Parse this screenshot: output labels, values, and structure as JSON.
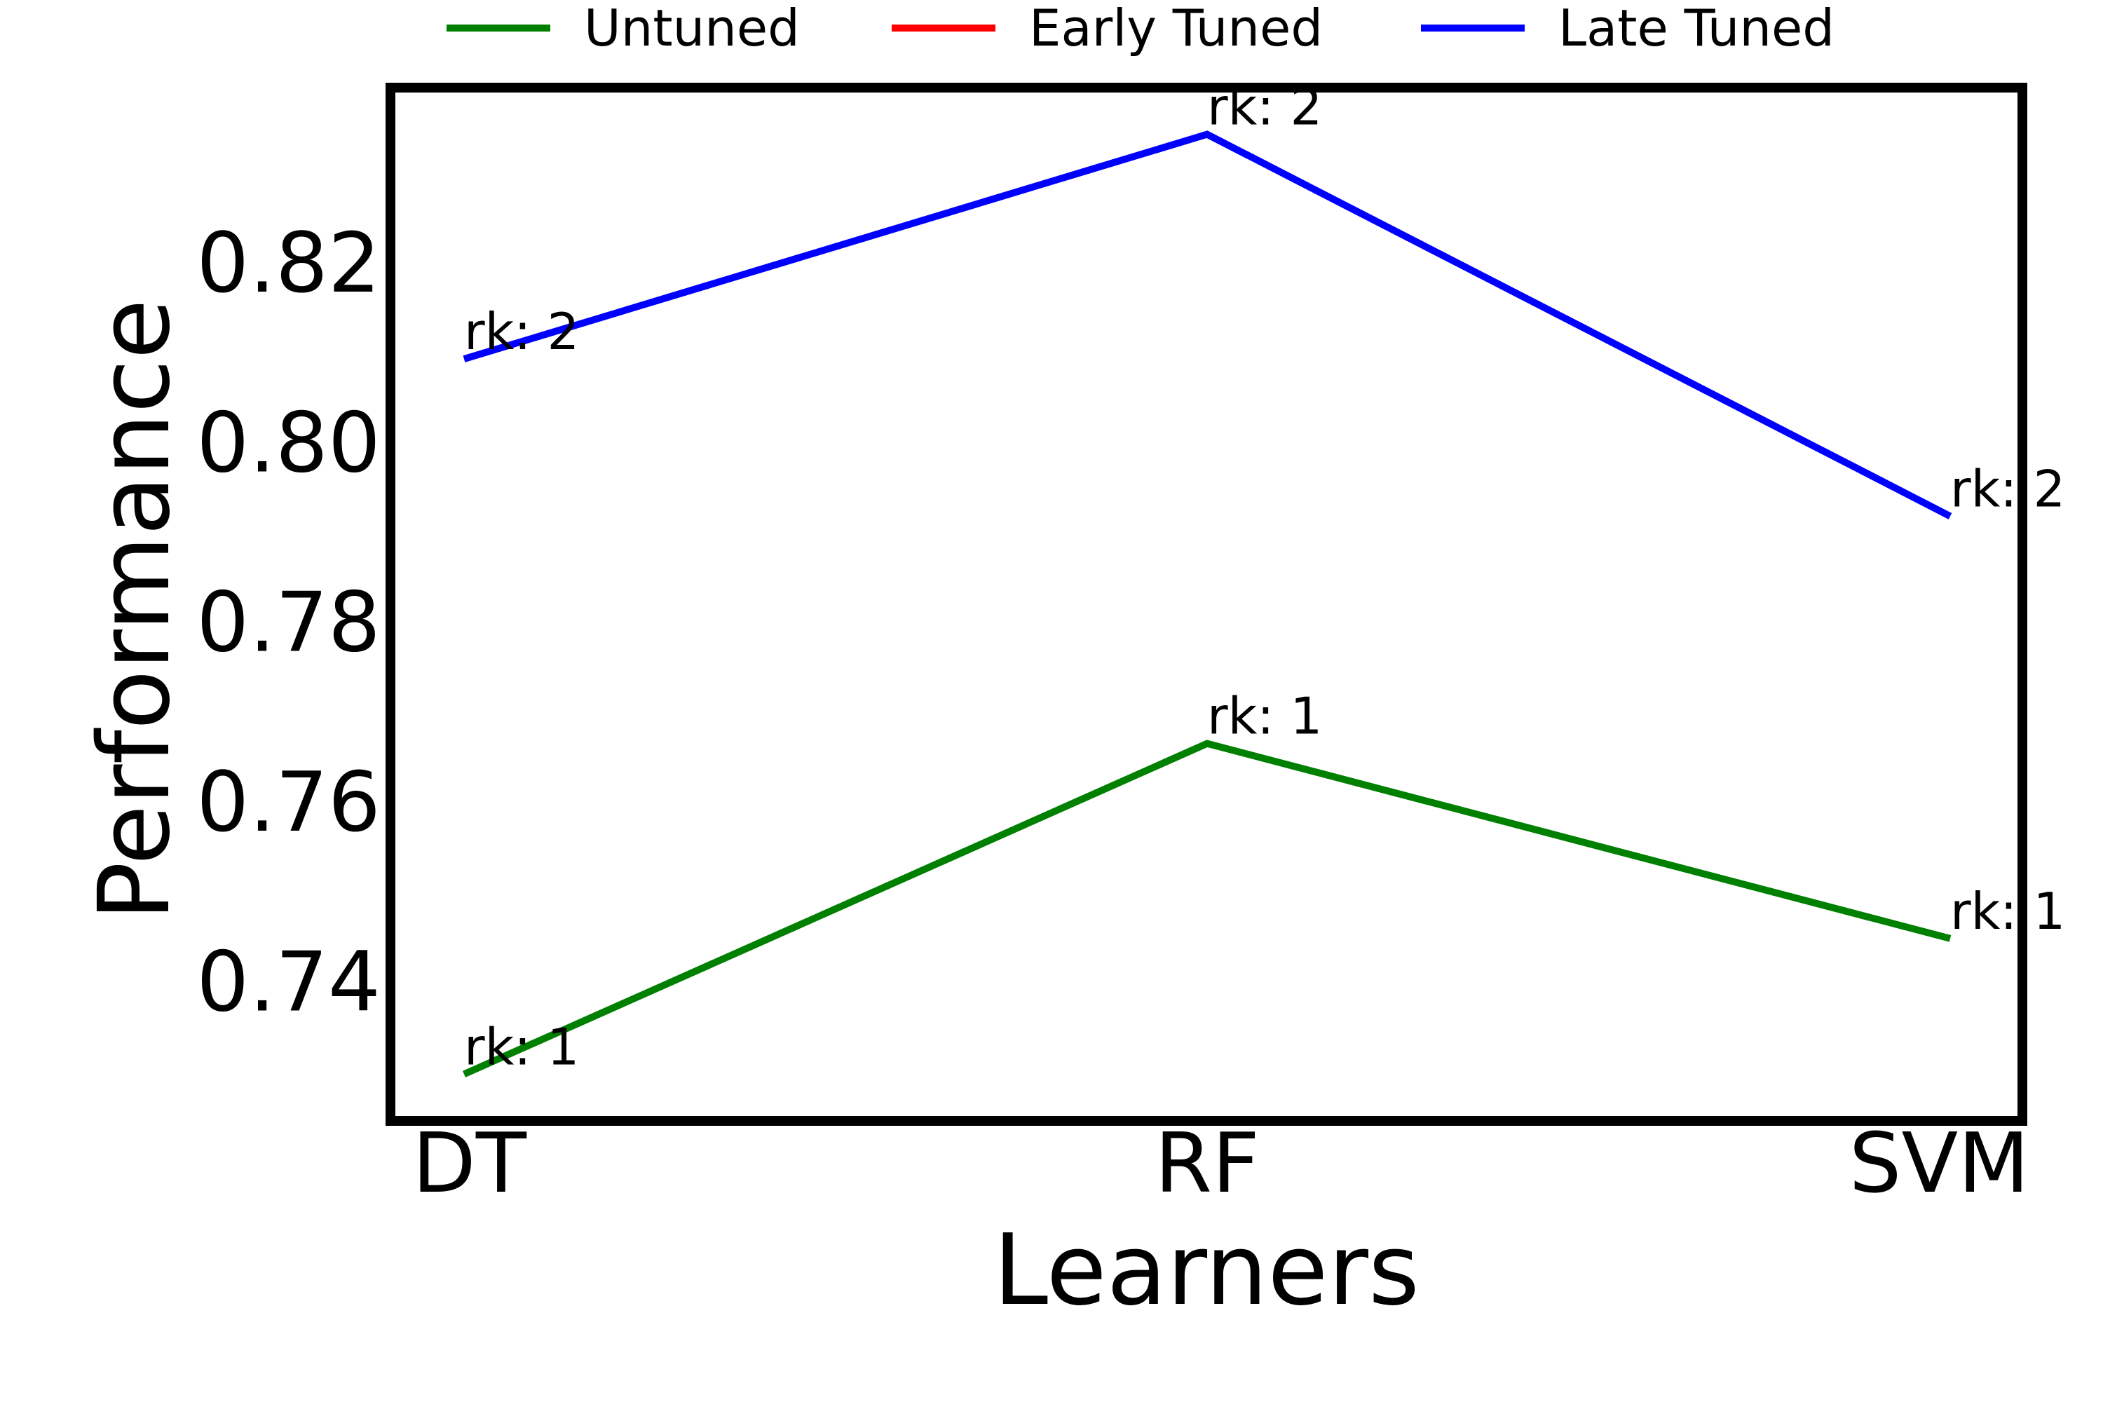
{
  "chart_data": {
    "type": "line",
    "xlabel": "Learners",
    "ylabel": "Performance",
    "categories": [
      "DT",
      "RF",
      "SVM"
    ],
    "ylim": [
      0.7245,
      0.8395
    ],
    "yticks": [
      "0.74",
      "0.76",
      "0.78",
      "0.80",
      "0.82"
    ],
    "grid": false,
    "legend": "top-center",
    "series": [
      {
        "name": "Untuned",
        "color": "#008000",
        "values": [
          0.7297,
          0.7665,
          0.7448
        ],
        "labels": [
          "rk: 1",
          "rk: 1",
          "rk: 1"
        ]
      },
      {
        "name": "Early Tuned",
        "color": "#ff0000",
        "values": [
          null,
          null,
          null
        ],
        "labels": []
      },
      {
        "name": "Late Tuned",
        "color": "#0000ff",
        "values": [
          0.8093,
          0.8343,
          0.7918
        ],
        "labels": [
          "rk: 2",
          "rk: 2",
          "rk: 2"
        ]
      }
    ]
  }
}
